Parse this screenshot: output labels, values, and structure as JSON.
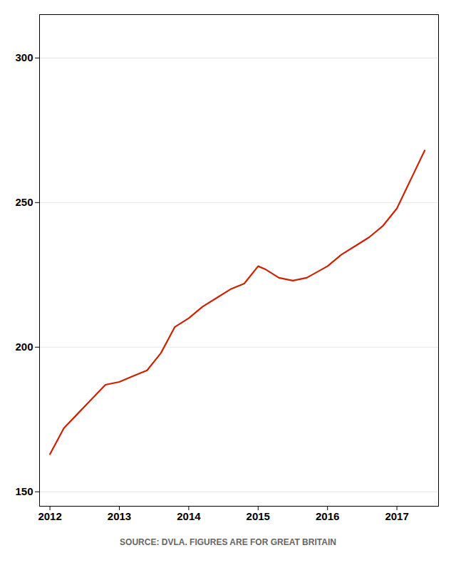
{
  "chart_data": {
    "type": "line",
    "caption": "SOURCE: DVLA. FIGURES ARE FOR GREAT BRITAIN",
    "x": [
      2012.0,
      2012.2,
      2012.4,
      2012.6,
      2012.8,
      2013.0,
      2013.2,
      2013.4,
      2013.6,
      2013.8,
      2014.0,
      2014.2,
      2014.4,
      2014.6,
      2014.8,
      2015.0,
      2015.1,
      2015.3,
      2015.5,
      2015.7,
      2016.0,
      2016.2,
      2016.4,
      2016.6,
      2016.8,
      2017.0,
      2017.2,
      2017.4
    ],
    "values": [
      163,
      172,
      177,
      182,
      187,
      188,
      190,
      192,
      198,
      207,
      210,
      214,
      217,
      220,
      222,
      228,
      227,
      224,
      223,
      224,
      228,
      232,
      235,
      238,
      242,
      248,
      258,
      268
    ],
    "color": "#cc2200",
    "xlim": [
      2011.85,
      2017.6
    ],
    "xticks": [
      2012,
      2013,
      2014,
      2015,
      2016,
      2017
    ],
    "ylim": [
      145,
      315
    ],
    "yticks": [
      150,
      200,
      250,
      300
    ],
    "grid": "y"
  }
}
